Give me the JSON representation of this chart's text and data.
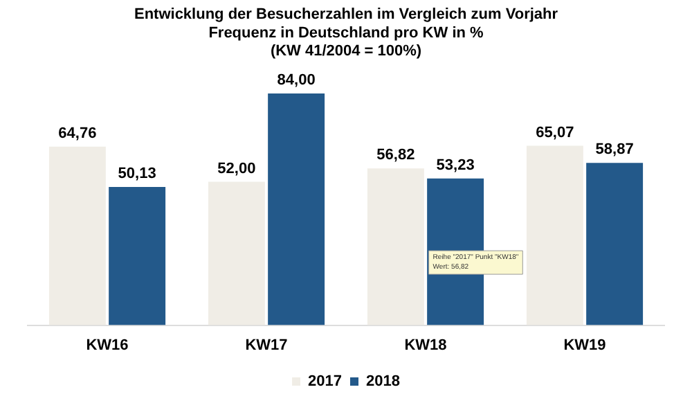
{
  "chart_data": {
    "type": "bar",
    "title": "Entwicklung der Besucherzahlen im Vergleich zum Vorjahr\nFrequenz in Deutschland pro KW in %\n(KW 41/2004 = 100%)",
    "categories": [
      "KW16",
      "KW17",
      "KW18",
      "KW19"
    ],
    "series": [
      {
        "name": "2017",
        "color": "#f0ede6",
        "values": [
          64.76,
          52.0,
          56.82,
          65.07
        ],
        "value_labels": [
          "64,76",
          "52,00",
          "56,82",
          "65,07"
        ]
      },
      {
        "name": "2018",
        "color": "#23598a",
        "values": [
          50.13,
          84.0,
          53.23,
          58.87
        ],
        "value_labels": [
          "50,13",
          "84,00",
          "53,23",
          "58,87"
        ]
      }
    ],
    "annotations": [
      "Reihe \"2017\" Punkt \"KW18\"\nWert: 56,82"
    ],
    "legend": "bottom",
    "grid": false
  }
}
